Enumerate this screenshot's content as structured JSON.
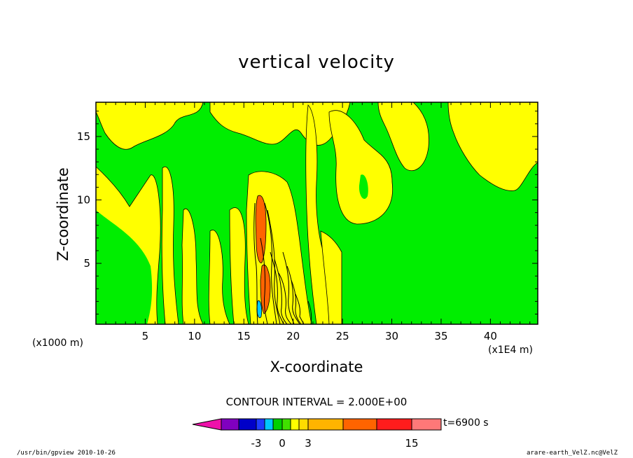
{
  "chart_data": {
    "type": "heatmap",
    "title": "vertical velocity",
    "xlabel": "X-coordinate",
    "ylabel": "Z-coordinate",
    "x_unit_left": "(x1000 m)",
    "x_unit_right": "(x1E4 m)",
    "xlim": [
      0,
      44.8
    ],
    "ylim": [
      0.2,
      17.7
    ],
    "x_ticks": [
      5,
      10,
      15,
      20,
      25,
      30,
      35,
      40
    ],
    "y_ticks": [
      5,
      10,
      15
    ],
    "contour_interval": "CONTOUR INTERVAL = 2.000E+00",
    "colorbar": {
      "colors": [
        "#ee11aa",
        "#8000c0",
        "#0000c8",
        "#1e3cff",
        "#00c8ff",
        "#00d000",
        "#40e000",
        "#ffff00",
        "#ffdc00",
        "#ffb400",
        "#ff6400",
        "#ff1c1c",
        "#ff7878",
        "#ffb4c8"
      ],
      "tick_labels": [
        "-3",
        "0",
        "3",
        "15"
      ],
      "time_label": "t=6900 s"
    },
    "field_colors": {
      "background": "#00ee00",
      "positive": "#ffff00",
      "strong_positive": "#ff6400",
      "strong_negative": "#00c8ff"
    }
  },
  "footer": {
    "left": "/usr/bin/gpview   2010-10-26",
    "right": "arare-earth_VelZ.nc@VelZ"
  }
}
